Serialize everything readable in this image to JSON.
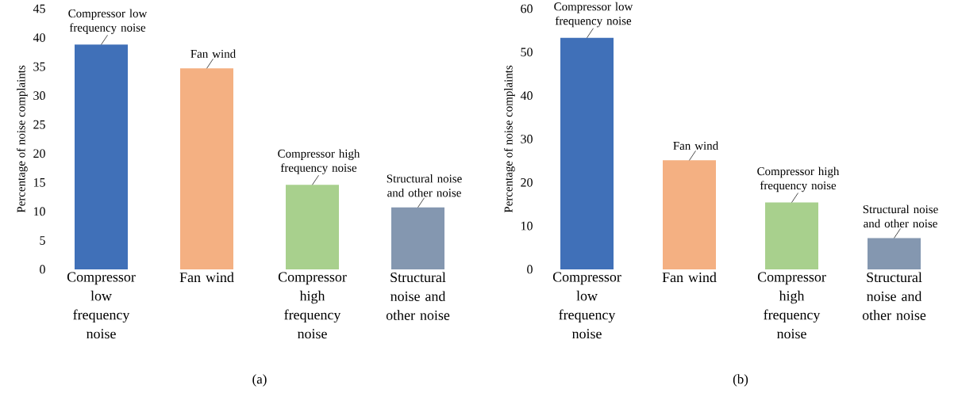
{
  "chart_data": [
    {
      "type": "bar",
      "title": "(a)",
      "ylabel": "Percentage of noise complaints",
      "categories": [
        "Compressor low frequency noise",
        "Fan wind",
        "Compressor high frequency noise",
        "Structural noise and other noise"
      ],
      "values": [
        38.8,
        34.7,
        14.6,
        10.7
      ],
      "colors": [
        "#4070b8",
        "#f4b082",
        "#a8d08d",
        "#8497b0"
      ],
      "ylim": [
        0,
        45
      ],
      "yticks": [
        0,
        5,
        10,
        15,
        20,
        25,
        30,
        35,
        40,
        45
      ],
      "grid": false,
      "annotations": [
        {
          "text": "Compressor low frequency noise",
          "x": "Compressor low frequency noise",
          "y": 38.8
        },
        {
          "text": "Fan wind",
          "x": "Fan wind",
          "y": 34.7
        },
        {
          "text": "Compressor high frequency noise",
          "x": "Compressor high frequency noise",
          "y": 14.6
        },
        {
          "text": "Structural noise and other noise",
          "x": "Structural noise and other noise",
          "y": 10.7
        }
      ]
    },
    {
      "type": "bar",
      "title": "(b)",
      "ylabel": "Percentage of noise complaints",
      "categories": [
        "Compressor low frequency noise",
        "Fan wind",
        "Compressor high frequency noise",
        "Structural noise and other noise"
      ],
      "values": [
        53.3,
        25.1,
        15.4,
        7.2
      ],
      "colors": [
        "#4070b8",
        "#f4b082",
        "#a8d08d",
        "#8497b0"
      ],
      "ylim": [
        0,
        60
      ],
      "yticks": [
        0,
        10,
        20,
        30,
        40,
        50,
        60
      ],
      "grid": false,
      "annotations": [
        {
          "text": "Compressor low frequency noise",
          "x": "Compressor low frequency noise",
          "y": 53.3
        },
        {
          "text": "Fan wind",
          "x": "Fan wind",
          "y": 25.1
        },
        {
          "text": "Compressor high frequency noise",
          "x": "Compressor high frequency noise",
          "y": 15.4
        },
        {
          "text": "Structural noise and other noise",
          "x": "Structural noise and other noise",
          "y": 7.2
        }
      ]
    }
  ]
}
